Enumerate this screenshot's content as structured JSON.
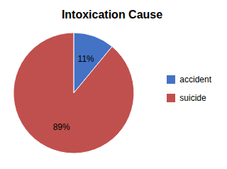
{
  "chart_data": {
    "type": "pie",
    "title": "Intoxication Cause",
    "categories": [
      "accident",
      "suicide"
    ],
    "values": [
      11,
      89
    ],
    "value_labels": [
      "11%",
      "89%"
    ],
    "colors": [
      "#4472C4",
      "#C0504D"
    ],
    "data_labels": true,
    "legend": "right"
  }
}
